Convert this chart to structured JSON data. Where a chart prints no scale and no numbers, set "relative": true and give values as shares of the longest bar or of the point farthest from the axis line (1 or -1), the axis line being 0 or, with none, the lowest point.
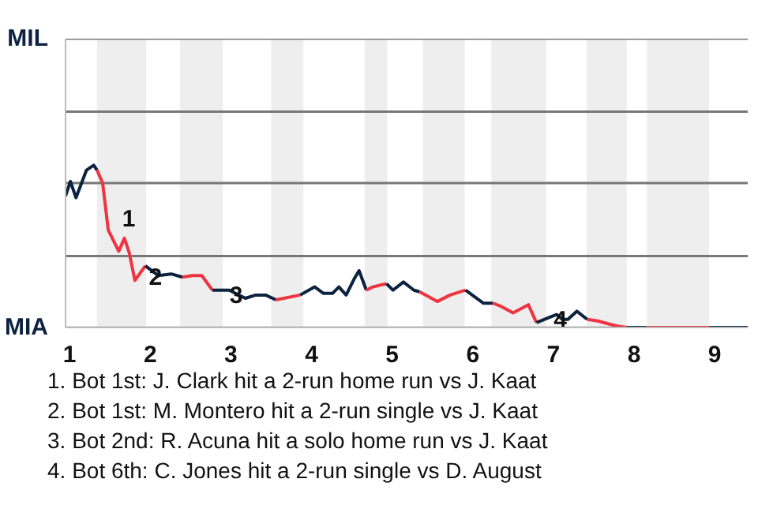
{
  "chart_data": {
    "type": "line",
    "relative": true,
    "xlim": [
      0.95,
      9.41
    ],
    "xticks": [
      1,
      2,
      3,
      4,
      5,
      6,
      7,
      8,
      9
    ],
    "marker": "none",
    "line_style": "solid",
    "series": [
      {
        "color": "#0c2340",
        "x": [
          0.95,
          1.01,
          1.08,
          1.21,
          1.3,
          1.34
        ],
        "values": [
          0.81,
          0.9,
          0.8,
          0.97,
          1,
          0.97
        ]
      },
      {
        "color": "#ef3340",
        "x": [
          1.34,
          1.41,
          1.48,
          1.61,
          1.68,
          1.74,
          1.81,
          1.94
        ],
        "values": [
          0.97,
          0.89,
          0.6,
          0.47,
          0.55,
          0.46,
          0.29,
          0.38
        ]
      },
      {
        "color": "#0c2340",
        "x": [
          1.94,
          2.1,
          2.26,
          2.4
        ],
        "values": [
          0.38,
          0.32,
          0.33,
          0.31
        ]
      },
      {
        "color": "#ef3340",
        "x": [
          2.4,
          2.52,
          2.64,
          2.77
        ],
        "values": [
          0.31,
          0.32,
          0.32,
          0.23
        ]
      },
      {
        "color": "#0c2340",
        "x": [
          2.77,
          2.98,
          3.18,
          3.31,
          3.43,
          3.56
        ],
        "values": [
          0.23,
          0.23,
          0.18,
          0.2,
          0.2,
          0.17
        ]
      },
      {
        "color": "#ef3340",
        "x": [
          3.56,
          3.86
        ],
        "values": [
          0.17,
          0.2
        ]
      },
      {
        "color": "#0c2340",
        "x": [
          3.86,
          4.04,
          4.15,
          4.26,
          4.34,
          4.43,
          4.53,
          4.59,
          4.68
        ],
        "values": [
          0.2,
          0.25,
          0.21,
          0.21,
          0.25,
          0.2,
          0.3,
          0.35,
          0.23
        ]
      },
      {
        "color": "#ef3340",
        "x": [
          4.68,
          4.76,
          4.93
        ],
        "values": [
          0.23,
          0.25,
          0.27
        ]
      },
      {
        "color": "#0c2340",
        "x": [
          4.93,
          5.01,
          5.14,
          5.27,
          5.34
        ],
        "values": [
          0.27,
          0.23,
          0.28,
          0.23,
          0.22
        ]
      },
      {
        "color": "#ef3340",
        "x": [
          5.34,
          5.56,
          5.72,
          5.91
        ],
        "values": [
          0.22,
          0.16,
          0.2,
          0.23
        ]
      },
      {
        "color": "#0c2340",
        "x": [
          5.91,
          6.02,
          6.13,
          6.25
        ],
        "values": [
          0.23,
          0.19,
          0.15,
          0.15
        ]
      },
      {
        "color": "#ef3340",
        "x": [
          6.25,
          6.35,
          6.5,
          6.69,
          6.79
        ],
        "values": [
          0.15,
          0.13,
          0.09,
          0.14,
          0.03
        ]
      },
      {
        "color": "#0c2340",
        "x": [
          6.79,
          6.94,
          7.04,
          7.11,
          7.18,
          7.29,
          7.42
        ],
        "values": [
          0.03,
          0.06,
          0.08,
          0.05,
          0.05,
          0.1,
          0.05
        ]
      },
      {
        "color": "#ef3340",
        "x": [
          7.42,
          7.55,
          7.78,
          7.91
        ],
        "values": [
          0.05,
          0.04,
          0.01,
          0
        ]
      },
      {
        "color": "#0c2340",
        "x": [
          7.91,
          8.16
        ],
        "values": [
          0,
          0
        ]
      },
      {
        "color": "#ef3340",
        "x": [
          8.16,
          8.93
        ],
        "values": [
          0,
          0
        ]
      },
      {
        "color": "#0c2340",
        "x": [
          8.93,
          9.41
        ],
        "values": [
          0,
          0
        ]
      }
    ],
    "ref_lines": [
      {
        "axis": "y",
        "value": 1.78,
        "label": "MIL",
        "color": "#777777"
      },
      {
        "axis": "y",
        "value": 1.33,
        "label": null,
        "color": "#777777"
      },
      {
        "axis": "y",
        "value": 0.89,
        "label": null,
        "color": "#777777"
      },
      {
        "axis": "y",
        "value": 0.44,
        "label": null,
        "color": "#777777"
      },
      {
        "axis": "y",
        "value": 0,
        "label": "MIA",
        "color": "#bbbbbb"
      }
    ],
    "bands": [
      {
        "axis": "x",
        "from": 1.34,
        "to": 1.95,
        "color": "#eeeeee"
      },
      {
        "axis": "x",
        "from": 2.37,
        "to": 2.9,
        "color": "#eeeeee"
      },
      {
        "axis": "x",
        "from": 3.5,
        "to": 3.9,
        "color": "#eeeeee"
      },
      {
        "axis": "x",
        "from": 4.66,
        "to": 4.94,
        "color": "#eeeeee"
      },
      {
        "axis": "x",
        "from": 5.38,
        "to": 5.9,
        "color": "#eeeeee"
      },
      {
        "axis": "x",
        "from": 6.23,
        "to": 6.91,
        "color": "#eeeeee"
      },
      {
        "axis": "x",
        "from": 7.41,
        "to": 7.91,
        "color": "#eeeeee"
      },
      {
        "axis": "x",
        "from": 8.16,
        "to": 8.93,
        "color": "#eeeeee"
      }
    ],
    "annotations": [
      {
        "text": "1",
        "x": 1.52,
        "y": 0.69
      },
      {
        "text": "2",
        "x": 1.85,
        "y": 0.33
      },
      {
        "text": "3",
        "x": 2.85,
        "y": 0.22
      },
      {
        "text": "4",
        "x": 6.87,
        "y": 0.07
      },
      "1. Bot 1st: J. Clark hit a 2-run home run vs J. Kaat",
      "2. Bot 1st: M. Montero hit a 2-run single vs J. Kaat",
      "3. Bot 2nd: R. Acuna hit a solo home run vs J. Kaat",
      "4. Bot 6th: C. Jones hit a 2-run single vs D. August"
    ]
  }
}
